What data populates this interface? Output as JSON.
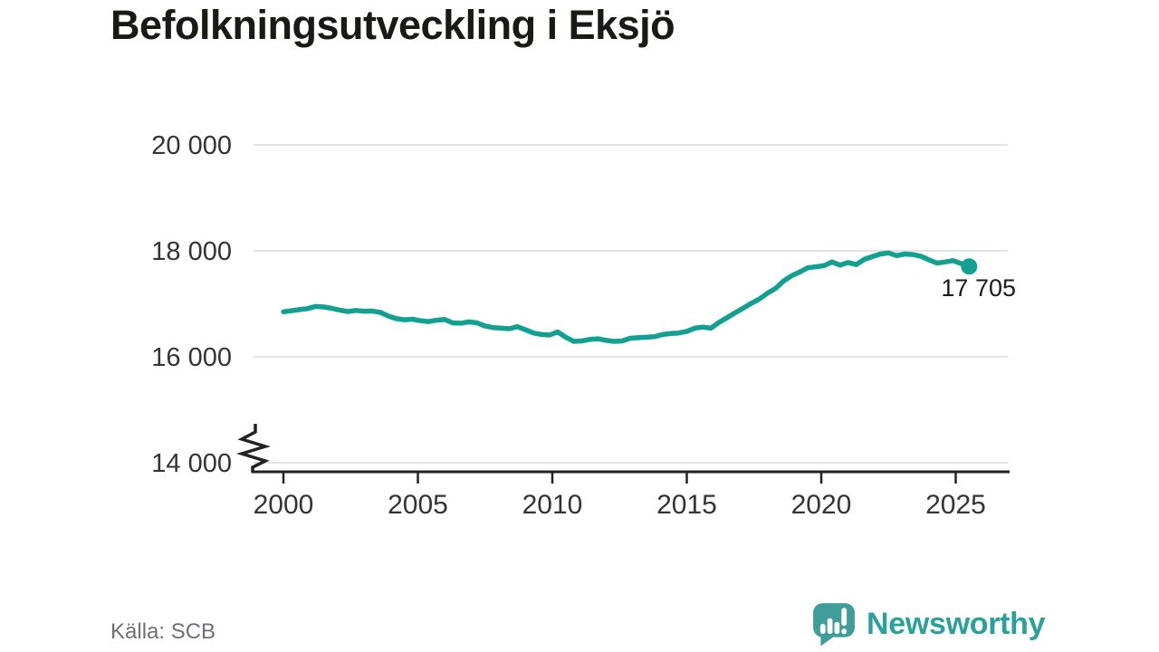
{
  "title": "Befolkningsutveckling i Eksjö",
  "source": "Källa: SCB",
  "brand": {
    "name": "Newsworthy",
    "wordmark_color": "#2aa19a",
    "icon_color": "#3f9e99"
  },
  "chart_data": {
    "type": "line",
    "title": "Befolkningsutveckling i Eksjö",
    "xlabel": "",
    "ylabel": "",
    "x_range": [
      2000,
      2027
    ],
    "y_range": [
      14000,
      20000
    ],
    "axis_break": true,
    "grid": "horizontal",
    "legend": "none",
    "colors": {
      "line": "#12a190",
      "grid": "#e3e3e3",
      "axis": "#222222",
      "tick_label": "#33333a",
      "end_label": "#1a1a1a"
    },
    "y_ticks": [
      {
        "value": 20000,
        "label": "20 000"
      },
      {
        "value": 18000,
        "label": "18 000"
      },
      {
        "value": 16000,
        "label": "16 000"
      },
      {
        "value": 14000,
        "label": "14 000"
      }
    ],
    "x_ticks": [
      {
        "value": 2000,
        "label": "2000"
      },
      {
        "value": 2005,
        "label": "2005"
      },
      {
        "value": 2010,
        "label": "2010"
      },
      {
        "value": 2015,
        "label": "2015"
      },
      {
        "value": 2020,
        "label": "2020"
      },
      {
        "value": 2025,
        "label": "2025"
      }
    ],
    "end_label": "17 705",
    "end_value": 17705,
    "series": [
      {
        "name": "Befolkning",
        "points": [
          [
            2000.0,
            16850
          ],
          [
            2000.3,
            16870
          ],
          [
            2000.6,
            16890
          ],
          [
            2000.9,
            16910
          ],
          [
            2001.2,
            16950
          ],
          [
            2001.5,
            16940
          ],
          [
            2001.8,
            16915
          ],
          [
            2002.1,
            16880
          ],
          [
            2002.4,
            16855
          ],
          [
            2002.7,
            16875
          ],
          [
            2003.0,
            16860
          ],
          [
            2003.3,
            16865
          ],
          [
            2003.6,
            16840
          ],
          [
            2003.9,
            16770
          ],
          [
            2004.2,
            16720
          ],
          [
            2004.5,
            16700
          ],
          [
            2004.8,
            16710
          ],
          [
            2005.1,
            16680
          ],
          [
            2005.4,
            16665
          ],
          [
            2005.7,
            16690
          ],
          [
            2006.0,
            16705
          ],
          [
            2006.3,
            16640
          ],
          [
            2006.6,
            16635
          ],
          [
            2006.9,
            16660
          ],
          [
            2007.2,
            16640
          ],
          [
            2007.5,
            16580
          ],
          [
            2007.8,
            16550
          ],
          [
            2008.1,
            16540
          ],
          [
            2008.4,
            16530
          ],
          [
            2008.7,
            16570
          ],
          [
            2009.0,
            16510
          ],
          [
            2009.3,
            16450
          ],
          [
            2009.6,
            16420
          ],
          [
            2009.9,
            16410
          ],
          [
            2010.2,
            16470
          ],
          [
            2010.5,
            16370
          ],
          [
            2010.8,
            16290
          ],
          [
            2011.1,
            16300
          ],
          [
            2011.4,
            16330
          ],
          [
            2011.7,
            16340
          ],
          [
            2012.0,
            16310
          ],
          [
            2012.3,
            16290
          ],
          [
            2012.6,
            16300
          ],
          [
            2012.9,
            16350
          ],
          [
            2013.2,
            16360
          ],
          [
            2013.5,
            16370
          ],
          [
            2013.8,
            16380
          ],
          [
            2014.1,
            16420
          ],
          [
            2014.4,
            16440
          ],
          [
            2014.7,
            16450
          ],
          [
            2015.0,
            16480
          ],
          [
            2015.3,
            16540
          ],
          [
            2015.6,
            16560
          ],
          [
            2015.9,
            16540
          ],
          [
            2016.2,
            16650
          ],
          [
            2016.5,
            16740
          ],
          [
            2016.8,
            16830
          ],
          [
            2017.1,
            16920
          ],
          [
            2017.4,
            17010
          ],
          [
            2017.7,
            17090
          ],
          [
            2018.0,
            17200
          ],
          [
            2018.3,
            17290
          ],
          [
            2018.6,
            17430
          ],
          [
            2018.9,
            17530
          ],
          [
            2019.2,
            17600
          ],
          [
            2019.5,
            17680
          ],
          [
            2019.8,
            17700
          ],
          [
            2020.1,
            17720
          ],
          [
            2020.4,
            17790
          ],
          [
            2020.7,
            17730
          ],
          [
            2021.0,
            17780
          ],
          [
            2021.3,
            17740
          ],
          [
            2021.6,
            17840
          ],
          [
            2021.9,
            17890
          ],
          [
            2022.2,
            17940
          ],
          [
            2022.5,
            17960
          ],
          [
            2022.8,
            17910
          ],
          [
            2023.1,
            17940
          ],
          [
            2023.4,
            17930
          ],
          [
            2023.7,
            17900
          ],
          [
            2024.0,
            17830
          ],
          [
            2024.3,
            17770
          ],
          [
            2024.6,
            17790
          ],
          [
            2024.9,
            17815
          ],
          [
            2025.2,
            17760
          ],
          [
            2025.5,
            17705
          ]
        ]
      }
    ]
  }
}
